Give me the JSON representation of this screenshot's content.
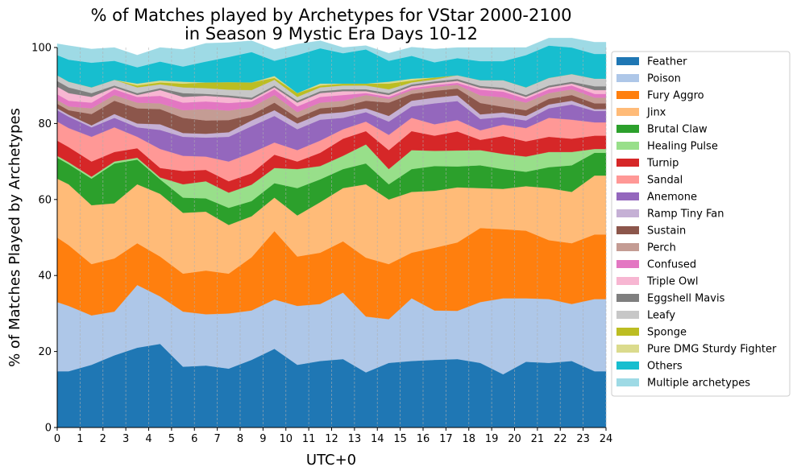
{
  "chart_data": {
    "type": "area",
    "stacked": true,
    "title_line1": "% of Matches played by Archetypes for VStar 2000-2100",
    "title_line2": "in Season 9 Mystic Era Days 10-12",
    "xlabel": "UTC+0",
    "ylabel": "% of Matches Played by Archetypes",
    "xlim": [
      0,
      24
    ],
    "ylim": [
      0,
      100
    ],
    "x_ticks": [
      0,
      1,
      2,
      3,
      4,
      5,
      6,
      7,
      8,
      9,
      10,
      11,
      12,
      13,
      14,
      15,
      16,
      17,
      18,
      19,
      20,
      21,
      22,
      23,
      24
    ],
    "y_ticks": [
      0,
      20,
      40,
      60,
      80,
      100
    ],
    "grid": "vertical dashed",
    "legend_position": "right",
    "x": [
      0,
      0.5,
      1.5,
      2.5,
      3.5,
      4.5,
      5.5,
      6.5,
      7.5,
      8.5,
      9.5,
      10.5,
      11.5,
      12.5,
      13.5,
      14.5,
      15.5,
      16.5,
      17.5,
      18.5,
      19.5,
      20.5,
      21.5,
      22.5,
      23.5,
      24
    ],
    "series": [
      {
        "name": "Feather",
        "color": "#1f77b4",
        "values": [
          14.8,
          14.8,
          16.5,
          19.0,
          21.0,
          22.0,
          16.0,
          16.3,
          15.5,
          17.8,
          20.7,
          16.5,
          17.5,
          18.0,
          14.5,
          17.0,
          17.5,
          17.8,
          18.0,
          17.0,
          14.0,
          17.3,
          17.0,
          17.5,
          14.8,
          14.8
        ]
      },
      {
        "name": "Poison",
        "color": "#aec7e8",
        "values": [
          18.2,
          17.2,
          13.0,
          11.5,
          16.5,
          12.5,
          14.5,
          13.5,
          14.5,
          13.0,
          13.0,
          15.5,
          15.0,
          17.5,
          14.7,
          11.5,
          16.5,
          13.0,
          12.7,
          16.0,
          20.0,
          16.7,
          16.8,
          15.0,
          19.0,
          19.0
        ]
      },
      {
        "name": "Fury Aggro",
        "color": "#ff7f0e",
        "values": [
          17.0,
          16.0,
          13.5,
          14.0,
          11.0,
          10.5,
          10.0,
          11.5,
          10.5,
          14.0,
          18.0,
          13.0,
          13.5,
          13.5,
          15.5,
          14.5,
          12.0,
          16.5,
          18.0,
          19.5,
          18.2,
          17.8,
          15.5,
          16.0,
          17.0,
          17.0
        ]
      },
      {
        "name": "Jinx",
        "color": "#ffbb78",
        "values": [
          15.5,
          16.0,
          15.5,
          14.5,
          15.5,
          16.5,
          16.0,
          15.5,
          12.8,
          10.8,
          8.8,
          10.8,
          13.3,
          14.0,
          19.3,
          17.0,
          16.0,
          15.0,
          14.5,
          10.5,
          10.6,
          11.7,
          13.7,
          13.5,
          15.5,
          15.5
        ]
      },
      {
        "name": "Brutal Claw",
        "color": "#2ca02c",
        "values": [
          5.5,
          5.3,
          7.0,
          10.5,
          6.5,
          3.8,
          4.0,
          3.5,
          4.5,
          4.0,
          3.8,
          7.2,
          6.0,
          5.0,
          5.5,
          4.0,
          6.0,
          6.5,
          5.5,
          6.0,
          5.2,
          3.8,
          5.5,
          7.0,
          6.0,
          6.0
        ]
      },
      {
        "name": "Healing Pulse",
        "color": "#98df8a",
        "values": [
          0.5,
          0.5,
          0.5,
          0.5,
          0.5,
          0.5,
          3.5,
          4.5,
          4.0,
          4.3,
          4.0,
          5.0,
          3.5,
          3.5,
          5.0,
          4.0,
          5.0,
          4.0,
          4.2,
          4.0,
          4.0,
          4.0,
          4.0,
          3.5,
          1.0,
          1.0
        ]
      },
      {
        "name": "Turnip",
        "color": "#d62728",
        "values": [
          4.0,
          4.0,
          4.0,
          2.5,
          2.5,
          2.5,
          3.5,
          3.0,
          3.0,
          3.0,
          3.5,
          2.0,
          3.5,
          4.5,
          3.5,
          5.0,
          5.0,
          4.0,
          5.0,
          2.7,
          4.7,
          4.0,
          4.0,
          3.5,
          3.5,
          3.5
        ]
      },
      {
        "name": "Sandal",
        "color": "#ff9896",
        "values": [
          5.0,
          5.0,
          6.5,
          6.5,
          3.0,
          5.0,
          4.0,
          3.5,
          5.2,
          5.4,
          3.2,
          3.0,
          3.2,
          2.5,
          2.5,
          4.0,
          3.5,
          3.0,
          3.0,
          2.5,
          3.0,
          3.5,
          5.0,
          5.0,
          3.5,
          3.5
        ]
      },
      {
        "name": "Anemone",
        "color": "#9467bd",
        "values": [
          3.0,
          3.0,
          2.5,
          2.5,
          2.5,
          5.0,
          5.0,
          5.0,
          6.5,
          7.0,
          7.0,
          5.5,
          5.5,
          3.0,
          2.5,
          3.5,
          3.0,
          5.5,
          5.0,
          3.0,
          2.0,
          2.0,
          2.5,
          4.0,
          3.0,
          3.0
        ]
      },
      {
        "name": "Ramp Tiny Fan",
        "color": "#c5b0d5",
        "values": [
          0.5,
          0.5,
          0.5,
          1.0,
          1.0,
          1.5,
          1.0,
          1.0,
          1.2,
          1.5,
          1.5,
          1.5,
          1.5,
          1.5,
          1.0,
          1.5,
          1.5,
          1.5,
          1.5,
          1.2,
          1.2,
          1.2,
          1.0,
          1.0,
          0.5,
          0.5
        ]
      },
      {
        "name": "Sustain",
        "color": "#8c564b",
        "values": [
          1.2,
          1.2,
          3.0,
          3.5,
          4.0,
          4.0,
          4.0,
          3.5,
          3.2,
          1.5,
          2.0,
          1.5,
          1.5,
          1.5,
          2.0,
          3.5,
          1.8,
          1.8,
          1.8,
          3.0,
          1.5,
          1.5,
          1.5,
          1.5,
          1.5,
          1.5
        ]
      },
      {
        "name": "Perch",
        "color": "#c49c94",
        "values": [
          1.0,
          1.0,
          1.5,
          1.5,
          1.5,
          1.5,
          2.0,
          3.0,
          2.5,
          2.0,
          2.0,
          1.5,
          1.5,
          1.5,
          1.5,
          1.0,
          1.0,
          1.0,
          1.0,
          2.0,
          2.5,
          2.0,
          1.5,
          1.5,
          1.5,
          1.5
        ]
      },
      {
        "name": "Confused",
        "color": "#e377c2",
        "values": [
          1.5,
          1.5,
          1.5,
          1.5,
          1.5,
          2.0,
          2.0,
          2.0,
          2.0,
          1.5,
          1.5,
          1.5,
          1.5,
          1.5,
          0.5,
          0.5,
          0.5,
          0.5,
          0.5,
          1.5,
          1.5,
          1.0,
          1.0,
          1.0,
          1.0,
          1.0
        ]
      },
      {
        "name": "Triple Owl",
        "color": "#f7b6d2",
        "values": [
          2.0,
          2.0,
          1.5,
          0.5,
          0.5,
          1.5,
          1.5,
          1.5,
          1.5,
          0.5,
          0.5,
          1.0,
          1.0,
          1.0,
          0.5,
          0.5,
          0.5,
          0.5,
          0.5,
          0.5,
          0.5,
          0.5,
          0.5,
          0.5,
          1.0,
          1.0
        ]
      },
      {
        "name": "Eggshell Mavis",
        "color": "#7f7f7f",
        "values": [
          1.5,
          1.5,
          1.0,
          0.5,
          0.5,
          0.5,
          1.0,
          0.5,
          0.5,
          0.5,
          0.5,
          0.5,
          0.5,
          0.5,
          0.5,
          0.5,
          0.5,
          0.5,
          0.5,
          0.5,
          0.5,
          0.5,
          0.5,
          0.5,
          1.0,
          1.0
        ]
      },
      {
        "name": "Leafy",
        "color": "#c7c7c7",
        "values": [
          1.5,
          1.5,
          1.5,
          1.5,
          1.5,
          1.0,
          1.5,
          1.5,
          1.5,
          2.0,
          1.5,
          1.0,
          1.0,
          1.0,
          1.0,
          1.0,
          0.5,
          0.5,
          1.0,
          1.5,
          2.0,
          2.0,
          2.0,
          2.0,
          2.0,
          2.0
        ]
      },
      {
        "name": "Sponge",
        "color": "#bcbd22",
        "values": [
          0.0,
          0.0,
          0.0,
          0.0,
          0.5,
          0.5,
          1.0,
          1.5,
          2.0,
          2.0,
          0.5,
          1.0,
          0.5,
          0.5,
          0.5,
          1.5,
          0.5,
          0.5,
          0.0,
          0.0,
          0.0,
          0.0,
          0.0,
          0.0,
          0.0,
          0.0
        ]
      },
      {
        "name": "Pure DMG Sturdy Fighter",
        "color": "#dbdb8d",
        "values": [
          0.0,
          0.0,
          0.0,
          0.0,
          0.5,
          0.5,
          0.5,
          0.0,
          0.0,
          0.0,
          0.5,
          0.0,
          0.5,
          0.0,
          0.0,
          0.5,
          0.5,
          0.0,
          0.0,
          0.0,
          0.0,
          0.0,
          0.0,
          0.0,
          0.0,
          0.0
        ]
      },
      {
        "name": "Others",
        "color": "#17becf",
        "values": [
          5.3,
          5.8,
          6.5,
          5.0,
          4.3,
          5.0,
          4.0,
          5.5,
          6.6,
          8.0,
          4.0,
          10.0,
          9.3,
          8.0,
          9.0,
          5.5,
          6.0,
          4.0,
          4.5,
          5.0,
          5.0,
          8.5,
          8.5,
          7.0,
          6.5,
          6.5
        ]
      },
      {
        "name": "Multiple archetypes",
        "color": "#9edae5",
        "values": [
          3.0,
          3.7,
          3.6,
          3.5,
          3.2,
          3.7,
          4.5,
          4.8,
          3.8,
          3.0,
          3.0,
          2.9,
          2.0,
          1.5,
          1.0,
          2.0,
          2.3,
          3.5,
          2.8,
          3.6,
          3.6,
          2.0,
          2.0,
          2.5,
          3.1,
          3.1
        ]
      }
    ]
  }
}
